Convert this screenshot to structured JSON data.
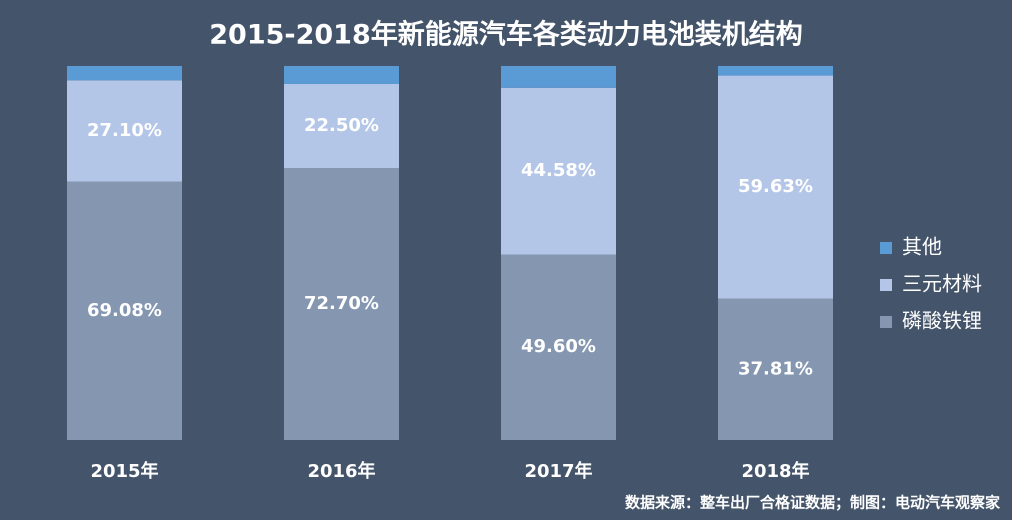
{
  "chart_data": {
    "type": "stacked_bar",
    "title": "2015-2018年新能源汽车各类动力电池装机结构",
    "categories": [
      "2015年",
      "2016年",
      "2017年",
      "2018年"
    ],
    "series": [
      {
        "name": "磷酸铁锂",
        "color": "#8496b0",
        "values": [
          69.08,
          72.7,
          49.6,
          37.81
        ],
        "value_labels": [
          "69.08%",
          "72.70%",
          "49.60%",
          "37.81%"
        ]
      },
      {
        "name": "三元材料",
        "color": "#b4c6e7",
        "values": [
          27.1,
          22.5,
          44.58,
          59.63
        ],
        "value_labels": [
          "27.10%",
          "22.50%",
          "44.58%",
          "59.63%"
        ]
      },
      {
        "name": "其他",
        "color": "#5b9bd5",
        "values": [
          3.82,
          4.8,
          5.82,
          2.56
        ]
      }
    ],
    "ylim": [
      0,
      100
    ],
    "legend": "right",
    "source": "数据来源：整车出厂合格证数据；制图：电动汽车观察家"
  }
}
